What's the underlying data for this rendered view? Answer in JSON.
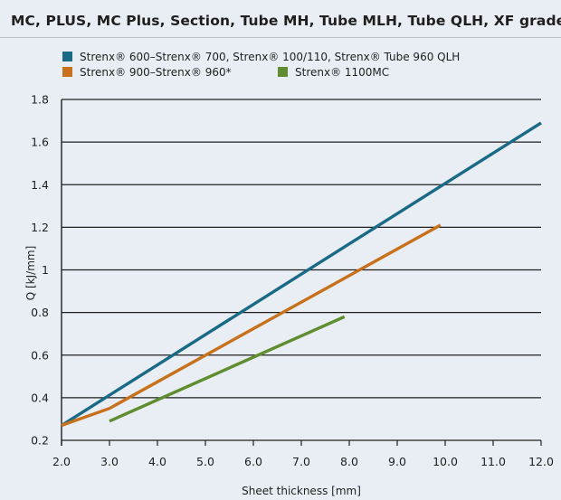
{
  "title": "MC, PLUS, MC Plus, Section, Tube MH, Tube MLH, Tube QLH, XF grades",
  "colors": {
    "background": "#e8eef3",
    "grid": "#1f1f1f"
  },
  "chart_data": {
    "type": "line",
    "xlabel": "Sheet thickness [mm]",
    "ylabel": "Q [kJ/mm]",
    "xlim": [
      2.0,
      12.0
    ],
    "ylim": [
      0.2,
      1.8
    ],
    "xticks": [
      "2.0",
      "3.0",
      "4.0",
      "5.0",
      "6.0",
      "7.0",
      "8.0",
      "9.0",
      "10.0",
      "11.0",
      "12.0"
    ],
    "yticks": [
      "0.2",
      "0.4",
      "0.6",
      "0.8",
      "1",
      "1.2",
      "1.4",
      "1.6",
      "1.8"
    ],
    "grid": "horizontal",
    "legend_position": "top",
    "series": [
      {
        "name": "Strenx® 600–Strenx® 700, Strenx® 100/110, Strenx® Tube 960 QLH",
        "color": "#1a6a85",
        "points": [
          [
            2.0,
            0.27
          ],
          [
            12.0,
            1.69
          ]
        ]
      },
      {
        "name": "Strenx® 900–Strenx® 960*",
        "color": "#c8711c",
        "points": [
          [
            2.0,
            0.27
          ],
          [
            3.0,
            0.35
          ],
          [
            9.9,
            1.21
          ]
        ]
      },
      {
        "name": "Strenx® 1100MC",
        "color": "#5f8d2f",
        "points": [
          [
            3.0,
            0.29
          ],
          [
            7.9,
            0.78
          ]
        ]
      }
    ]
  }
}
